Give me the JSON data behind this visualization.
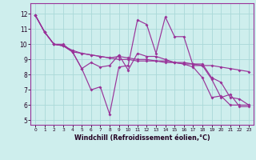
{
  "xlabel": "Windchill (Refroidissement éolien,°C)",
  "xlim": [
    -0.5,
    23.5
  ],
  "ylim": [
    4.7,
    12.7
  ],
  "yticks": [
    5,
    6,
    7,
    8,
    9,
    10,
    11,
    12
  ],
  "xticks": [
    0,
    1,
    2,
    3,
    4,
    5,
    6,
    7,
    8,
    9,
    10,
    11,
    12,
    13,
    14,
    15,
    16,
    17,
    18,
    19,
    20,
    21,
    22,
    23
  ],
  "bg_color": "#ceeeed",
  "line_color": "#993399",
  "grid_color": "#aad8d8",
  "series": [
    {
      "x": [
        0,
        1,
        2,
        3,
        4,
        5,
        6,
        7,
        8,
        9,
        10,
        11,
        12,
        13,
        14,
        15,
        16,
        17,
        18,
        19,
        20,
        21,
        22,
        23
      ],
      "y": [
        11.9,
        10.8,
        10.0,
        10.0,
        9.5,
        8.4,
        7.0,
        7.2,
        5.4,
        8.5,
        8.6,
        11.6,
        11.3,
        9.4,
        11.8,
        10.5,
        10.5,
        8.6,
        8.6,
        7.7,
        6.5,
        6.7,
        5.9,
        5.9
      ]
    },
    {
      "x": [
        0,
        1,
        2,
        3,
        4,
        5,
        6,
        7,
        8,
        9,
        10,
        11,
        12,
        13,
        14,
        15,
        16,
        17,
        18,
        19,
        20,
        21,
        22,
        23
      ],
      "y": [
        11.9,
        10.8,
        10.0,
        9.9,
        9.5,
        8.4,
        8.8,
        8.5,
        8.6,
        9.3,
        8.3,
        9.4,
        9.2,
        9.2,
        9.0,
        8.8,
        8.7,
        8.5,
        7.8,
        6.5,
        6.6,
        6.0,
        6.0,
        6.0
      ]
    },
    {
      "x": [
        0,
        1,
        2,
        3,
        4,
        5,
        6,
        7,
        8,
        9,
        10,
        11,
        12,
        13,
        14,
        15,
        16,
        17,
        18,
        19,
        20,
        21,
        22,
        23
      ],
      "y": [
        11.9,
        10.8,
        10.0,
        9.9,
        9.6,
        9.4,
        9.3,
        9.2,
        9.1,
        9.0,
        9.0,
        8.9,
        8.9,
        8.9,
        8.8,
        8.8,
        8.7,
        8.7,
        8.6,
        8.6,
        8.5,
        8.4,
        8.3,
        8.2
      ]
    },
    {
      "x": [
        0,
        1,
        2,
        3,
        4,
        5,
        6,
        7,
        8,
        9,
        10,
        11,
        12,
        13,
        14,
        15,
        16,
        17,
        18,
        19,
        20,
        21,
        22,
        23
      ],
      "y": [
        11.9,
        10.8,
        10.0,
        9.9,
        9.5,
        9.4,
        9.3,
        9.2,
        9.1,
        9.2,
        9.1,
        9.0,
        9.0,
        8.9,
        8.9,
        8.8,
        8.8,
        8.7,
        8.7,
        7.8,
        7.5,
        6.5,
        6.4,
        6.0
      ]
    }
  ]
}
